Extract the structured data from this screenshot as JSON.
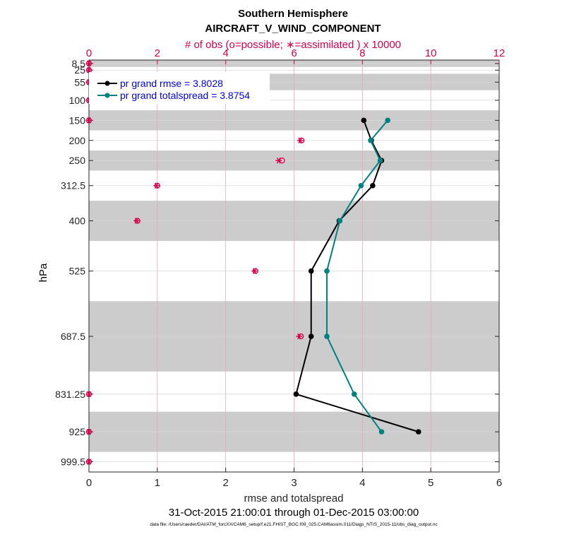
{
  "chart_data": {
    "type": "line",
    "title": "Southern Hemisphere",
    "subtitle": "AIRCRAFT_V_WIND_COMPONENT",
    "top_axis_label": "# of obs (o=possible; ∗=assimilated ) x 10000",
    "xlabel": "rmse and totalspread",
    "ylabel": "hPa",
    "date_range": "31-Oct-2015 21:00:01 through 01-Dec-2015 03:00:00",
    "footnote": "data file: /Users/raeder/DAI/ATM_forcXX/CAM6_setup/f.e21.FHIST_BGC.f09_025.CAM6assim.011/Diags_NTrS_2015-11/obs_diag_output.nc",
    "xlim": [
      0,
      6
    ],
    "x_ticks": [
      "0",
      "1",
      "2",
      "3",
      "4",
      "5",
      "6"
    ],
    "top_xlim": [
      0,
      12
    ],
    "top_ticks": [
      "0",
      "2",
      "4",
      "6",
      "8",
      "10",
      "12"
    ],
    "ylim": [
      1025,
      0
    ],
    "levels": [
      8.5,
      25,
      55,
      100,
      150,
      200,
      250,
      312.5,
      400,
      525,
      687.5,
      831.25,
      925,
      999.5
    ],
    "level_labels": [
      "8.5",
      "25",
      "55",
      "100",
      "150",
      "200",
      "250",
      "312.5",
      "400",
      "525",
      "687.5",
      "831.25",
      "925",
      "999.5"
    ],
    "shaded_bands": [
      [
        0,
        17
      ],
      [
        34,
        75
      ],
      [
        125,
        175
      ],
      [
        225,
        275
      ],
      [
        350,
        450
      ],
      [
        600,
        775
      ],
      [
        875,
        975
      ]
    ],
    "series": [
      {
        "name": "pr grand rmse = 3.8028",
        "color": "#000000",
        "levels": [
          150,
          200,
          250,
          312.5,
          400,
          525,
          687.5,
          831.25,
          925
        ],
        "values": [
          4.02,
          4.13,
          4.28,
          4.15,
          3.66,
          3.25,
          3.25,
          3.03,
          4.82
        ]
      },
      {
        "name": "pr grand totalspread = 3.8754",
        "color": "#008080",
        "levels": [
          150,
          200,
          250,
          312.5,
          400,
          525,
          687.5,
          831.25,
          925
        ],
        "values": [
          4.37,
          4.12,
          4.26,
          3.98,
          3.67,
          3.48,
          3.48,
          3.88,
          4.28
        ]
      }
    ],
    "obs_possible": {
      "color": "#D6004C",
      "levels": [
        8.5,
        25,
        55,
        100,
        150,
        200,
        250,
        312.5,
        400,
        525,
        687.5,
        831.25,
        925,
        999.5
      ],
      "values": [
        0,
        0,
        0,
        0,
        0,
        6.22,
        5.65,
        2.0,
        1.42,
        4.87,
        6.2,
        0,
        0,
        0
      ]
    },
    "obs_assimilated": {
      "color": "#D6004C",
      "levels": [
        8.5,
        25,
        55,
        100,
        150,
        200,
        250,
        312.5,
        400,
        525,
        687.5,
        831.25,
        925,
        999.5
      ],
      "values": [
        0,
        0,
        0,
        0,
        0,
        6.18,
        5.55,
        1.98,
        1.4,
        4.85,
        6.15,
        0,
        0,
        0
      ]
    }
  }
}
